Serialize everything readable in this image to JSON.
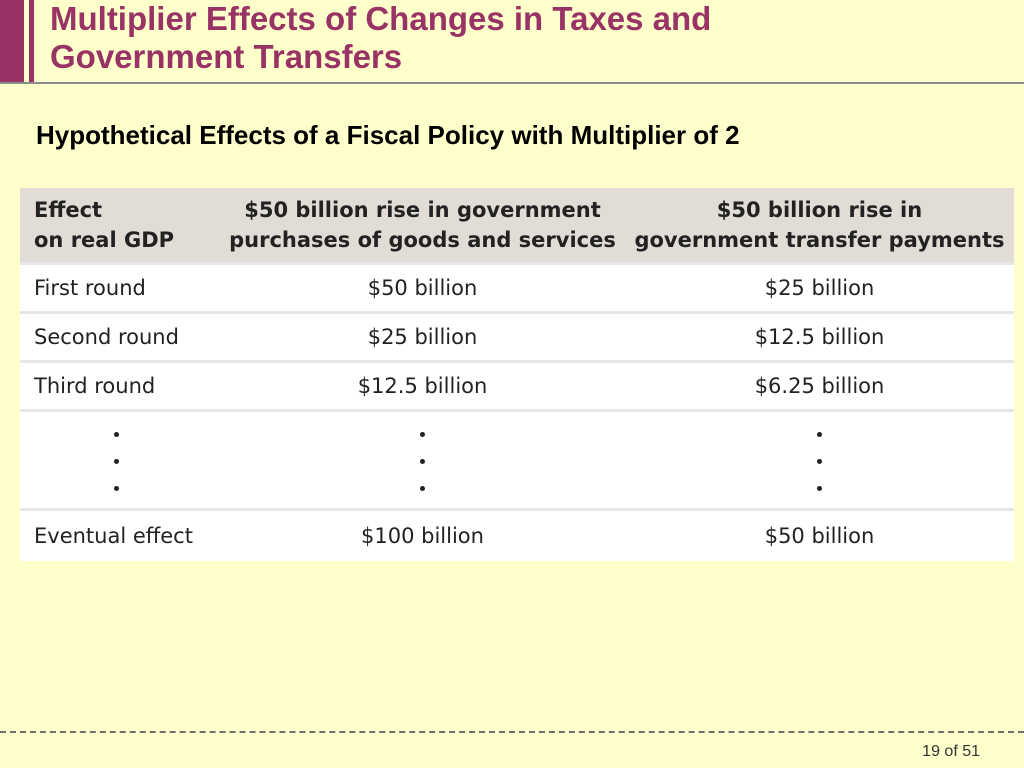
{
  "slide": {
    "title": "Multiplier Effects of Changes in Taxes and\nGovernment Transfers",
    "subtitle": "Hypothetical Effects of a Fiscal Policy with Multiplier of 2"
  },
  "table": {
    "headers": [
      "Effect\non real GDP",
      "$50 billion rise in government\npurchases of goods and services",
      "$50 billion rise in\ngovernment transfer payments"
    ],
    "rows": [
      [
        "First round",
        "$50 billion",
        "$25 billion"
      ],
      [
        "Second round",
        "$25 billion",
        "$12.5 billion"
      ],
      [
        "Third round",
        "$12.5 billion",
        "$6.25 billion"
      ]
    ],
    "final_row": [
      "Eventual effect",
      "$100 billion",
      "$50 billion"
    ]
  },
  "footer": {
    "page": "19 of 51"
  },
  "colors": {
    "background": "#ffffcc",
    "accent": "#993366",
    "table_header": "#e1dcd6"
  }
}
